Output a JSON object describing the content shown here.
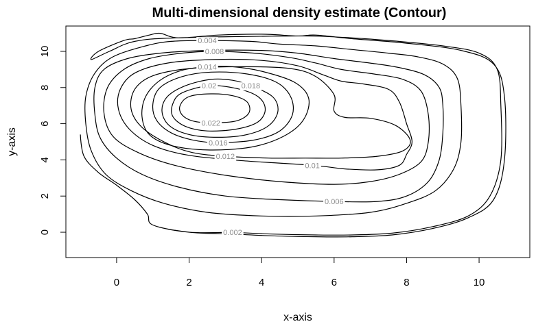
{
  "chart_data": {
    "type": "contour",
    "title": "Multi-dimensional density estimate (Contour)",
    "xlabel": "x-axis",
    "ylabel": "y-axis",
    "xlim": [
      -1.4,
      11.4
    ],
    "ylim": [
      -1.4,
      11.4
    ],
    "x_ticks": [
      0,
      2,
      4,
      6,
      8,
      10
    ],
    "y_ticks": [
      0,
      2,
      4,
      6,
      8,
      10
    ],
    "grid": false,
    "levels": [
      {
        "value": "0.002",
        "label_at": [
          3.2,
          0.0
        ],
        "points": [
          [
            3.2,
            0.0
          ],
          [
            4.3,
            -0.1
          ],
          [
            5.5,
            -0.15
          ],
          [
            6.5,
            -0.15
          ],
          [
            7.6,
            -0.05
          ],
          [
            8.7,
            0.3
          ],
          [
            9.7,
            0.9
          ],
          [
            10.3,
            2.0
          ],
          [
            10.6,
            4.0
          ],
          [
            10.6,
            7.0
          ],
          [
            10.5,
            9.0
          ],
          [
            10.0,
            9.9
          ],
          [
            9.0,
            10.3
          ],
          [
            7.5,
            10.6
          ],
          [
            6.0,
            10.8
          ],
          [
            5.0,
            10.85
          ],
          [
            1.7,
            10.75
          ],
          [
            0.5,
            10.55
          ],
          [
            -0.2,
            10.0
          ],
          [
            -0.7,
            9.55
          ],
          [
            -0.5,
            10.0
          ],
          [
            0.2,
            10.6
          ],
          [
            0.5,
            10.7
          ],
          [
            0.9,
            10.9
          ],
          [
            1.2,
            11.0
          ],
          [
            1.7,
            10.75
          ],
          [
            2.8,
            10.9
          ],
          [
            4.0,
            10.95
          ],
          [
            5.0,
            10.85
          ],
          [
            5.5,
            10.9
          ],
          [
            6.5,
            10.7
          ],
          [
            8.0,
            10.45
          ],
          [
            9.5,
            10.05
          ],
          [
            10.4,
            9.3
          ],
          [
            10.7,
            7.5
          ],
          [
            10.7,
            4.0
          ],
          [
            10.4,
            1.8
          ],
          [
            9.7,
            0.8
          ],
          [
            8.7,
            0.2
          ],
          [
            7.6,
            -0.15
          ],
          [
            6.5,
            -0.25
          ],
          [
            5.5,
            -0.25
          ],
          [
            4.3,
            -0.2
          ],
          [
            3.2,
            -0.1
          ],
          [
            2.0,
            0.0
          ],
          [
            1.0,
            0.4
          ],
          [
            0.85,
            1.0
          ],
          [
            0.5,
            1.8
          ],
          [
            0.0,
            2.6
          ],
          [
            -0.5,
            3.3
          ],
          [
            -0.9,
            4.2
          ],
          [
            -1.0,
            5.4
          ],
          [
            -0.9,
            4.2
          ],
          [
            -0.5,
            3.3
          ],
          [
            0.0,
            2.6
          ],
          [
            0.5,
            1.8
          ],
          [
            0.85,
            1.0
          ],
          [
            1.0,
            0.4
          ],
          [
            2.0,
            0.0
          ],
          [
            3.2,
            0.0
          ]
        ],
        "closed": false
      },
      {
        "value": "0.004",
        "label_at": [
          2.5,
          10.6
        ],
        "points": [
          [
            2.5,
            10.6
          ],
          [
            3.7,
            10.55
          ],
          [
            4.5,
            10.4
          ],
          [
            5.5,
            10.3
          ],
          [
            6.5,
            10.1
          ],
          [
            7.5,
            9.9
          ],
          [
            8.3,
            9.7
          ],
          [
            9.0,
            9.3
          ],
          [
            9.4,
            8.5
          ],
          [
            9.5,
            7.0
          ],
          [
            9.5,
            5.0
          ],
          [
            9.3,
            3.5
          ],
          [
            8.8,
            2.3
          ],
          [
            8.0,
            1.6
          ],
          [
            7.0,
            1.1
          ],
          [
            5.5,
            0.9
          ],
          [
            4.0,
            0.9
          ],
          [
            2.5,
            1.1
          ],
          [
            1.3,
            1.6
          ],
          [
            0.4,
            2.3
          ],
          [
            -0.3,
            3.2
          ],
          [
            -0.7,
            4.5
          ],
          [
            -0.85,
            6.0
          ],
          [
            -0.85,
            7.5
          ],
          [
            -0.6,
            8.8
          ],
          [
            -0.1,
            9.7
          ],
          [
            0.8,
            10.3
          ],
          [
            1.5,
            10.55
          ],
          [
            2.5,
            10.6
          ]
        ],
        "closed": true
      },
      {
        "value": "0.006",
        "label_at": [
          6.0,
          1.7
        ],
        "points": [
          [
            6.0,
            1.7
          ],
          [
            7.2,
            1.7
          ],
          [
            8.0,
            2.0
          ],
          [
            8.6,
            2.8
          ],
          [
            8.9,
            4.0
          ],
          [
            9.0,
            5.5
          ],
          [
            9.0,
            7.0
          ],
          [
            8.9,
            8.0
          ],
          [
            8.5,
            8.7
          ],
          [
            7.8,
            9.1
          ],
          [
            7.0,
            9.35
          ],
          [
            6.0,
            9.6
          ],
          [
            5.0,
            9.9
          ],
          [
            4.0,
            10.05
          ],
          [
            2.5,
            10.05
          ],
          [
            1.2,
            9.9
          ],
          [
            0.3,
            9.6
          ],
          [
            -0.35,
            9.0
          ],
          [
            -0.6,
            8.0
          ],
          [
            -0.6,
            6.5
          ],
          [
            -0.45,
            5.2
          ],
          [
            0.0,
            4.1
          ],
          [
            0.7,
            3.2
          ],
          [
            1.7,
            2.5
          ],
          [
            3.0,
            2.0
          ],
          [
            4.5,
            1.8
          ],
          [
            6.0,
            1.7
          ]
        ],
        "closed": true
      },
      {
        "value": "0.008",
        "label_at": [
          2.7,
          10.0
        ],
        "points": [
          [
            2.7,
            10.0
          ],
          [
            3.8,
            9.9
          ],
          [
            4.8,
            9.65
          ],
          [
            5.5,
            9.35
          ],
          [
            6.2,
            9.0
          ],
          [
            7.1,
            8.75
          ],
          [
            7.9,
            8.45
          ],
          [
            8.4,
            7.8
          ],
          [
            8.6,
            6.5
          ],
          [
            8.6,
            5.0
          ],
          [
            8.4,
            3.9
          ],
          [
            7.8,
            3.2
          ],
          [
            7.0,
            2.8
          ],
          [
            6.0,
            2.65
          ],
          [
            4.5,
            2.8
          ],
          [
            3.0,
            3.15
          ],
          [
            1.6,
            3.7
          ],
          [
            0.6,
            4.4
          ],
          [
            -0.1,
            5.3
          ],
          [
            -0.35,
            6.6
          ],
          [
            -0.25,
            8.0
          ],
          [
            0.2,
            9.0
          ],
          [
            0.9,
            9.6
          ],
          [
            1.8,
            9.9
          ],
          [
            2.7,
            10.0
          ]
        ],
        "closed": true
      },
      {
        "value": "0.01",
        "label_at": [
          5.4,
          3.7
        ],
        "points": [
          [
            5.4,
            3.7
          ],
          [
            6.3,
            3.5
          ],
          [
            7.2,
            3.45
          ],
          [
            7.8,
            3.7
          ],
          [
            8.0,
            4.3
          ],
          [
            8.15,
            5.0
          ],
          [
            8.0,
            6.0
          ],
          [
            7.8,
            7.2
          ],
          [
            7.5,
            7.9
          ],
          [
            6.8,
            8.2
          ],
          [
            6.2,
            8.35
          ],
          [
            5.7,
            8.7
          ],
          [
            5.0,
            9.2
          ],
          [
            4.0,
            9.5
          ],
          [
            2.7,
            9.55
          ],
          [
            1.4,
            9.35
          ],
          [
            0.5,
            8.8
          ],
          [
            0.1,
            7.9
          ],
          [
            0.05,
            6.8
          ],
          [
            0.35,
            5.7
          ],
          [
            1.0,
            4.8
          ],
          [
            2.0,
            4.25
          ],
          [
            3.5,
            3.95
          ],
          [
            5.4,
            3.7
          ]
        ],
        "closed": true
      },
      {
        "value": "0.012",
        "label_at": [
          3.0,
          4.2
        ],
        "points": [
          [
            3.0,
            4.2
          ],
          [
            4.2,
            4.1
          ],
          [
            5.2,
            4.1
          ],
          [
            6.2,
            4.1
          ],
          [
            7.2,
            4.2
          ],
          [
            7.9,
            4.5
          ],
          [
            8.1,
            5.1
          ],
          [
            7.7,
            5.9
          ],
          [
            7.0,
            6.3
          ],
          [
            6.3,
            6.35
          ],
          [
            6.0,
            6.7
          ],
          [
            6.0,
            7.6
          ],
          [
            5.5,
            8.6
          ],
          [
            4.8,
            9.05
          ],
          [
            3.5,
            9.15
          ],
          [
            2.0,
            9.05
          ],
          [
            1.0,
            8.65
          ],
          [
            0.5,
            7.9
          ],
          [
            0.4,
            6.8
          ],
          [
            0.7,
            5.8
          ],
          [
            1.4,
            4.9
          ],
          [
            2.1,
            4.4
          ],
          [
            3.0,
            4.2
          ]
        ],
        "closed": true
      },
      {
        "value": "0.014",
        "label_at": [
          2.5,
          9.15
        ],
        "points": [
          [
            2.5,
            9.15
          ],
          [
            3.2,
            9.15
          ],
          [
            4.0,
            8.9
          ],
          [
            4.9,
            8.3
          ],
          [
            5.3,
            7.4
          ],
          [
            5.15,
            6.2
          ],
          [
            4.6,
            5.3
          ],
          [
            3.7,
            4.7
          ],
          [
            2.5,
            4.55
          ],
          [
            1.5,
            4.8
          ],
          [
            0.9,
            5.4
          ],
          [
            0.7,
            6.4
          ],
          [
            0.8,
            7.5
          ],
          [
            1.2,
            8.4
          ],
          [
            1.8,
            8.95
          ],
          [
            2.5,
            9.15
          ]
        ],
        "closed": true
      },
      {
        "value": "0.016",
        "label_at": [
          2.8,
          4.95
        ],
        "points": [
          [
            2.8,
            4.95
          ],
          [
            3.8,
            5.1
          ],
          [
            4.5,
            5.6
          ],
          [
            4.85,
            6.5
          ],
          [
            4.8,
            7.5
          ],
          [
            4.4,
            8.3
          ],
          [
            3.6,
            8.75
          ],
          [
            2.6,
            8.85
          ],
          [
            1.8,
            8.6
          ],
          [
            1.2,
            8.0
          ],
          [
            1.0,
            7.1
          ],
          [
            1.1,
            6.2
          ],
          [
            1.5,
            5.5
          ],
          [
            2.1,
            5.1
          ],
          [
            2.8,
            4.95
          ]
        ],
        "closed": true
      },
      {
        "value": "0.018",
        "label_at": [
          3.7,
          8.1
        ],
        "points": [
          [
            3.7,
            8.1
          ],
          [
            4.3,
            7.5
          ],
          [
            4.45,
            6.7
          ],
          [
            4.2,
            5.9
          ],
          [
            3.6,
            5.4
          ],
          [
            2.8,
            5.25
          ],
          [
            2.0,
            5.4
          ],
          [
            1.45,
            5.9
          ],
          [
            1.25,
            6.7
          ],
          [
            1.4,
            7.5
          ],
          [
            1.9,
            8.1
          ],
          [
            2.6,
            8.45
          ],
          [
            3.2,
            8.4
          ],
          [
            3.7,
            8.1
          ]
        ],
        "closed": true
      },
      {
        "value": "0.02",
        "label_at": [
          2.55,
          8.1
        ],
        "points": [
          [
            2.55,
            8.1
          ],
          [
            3.3,
            7.95
          ],
          [
            3.9,
            7.5
          ],
          [
            4.1,
            6.8
          ],
          [
            3.9,
            6.1
          ],
          [
            3.3,
            5.7
          ],
          [
            2.5,
            5.6
          ],
          [
            1.9,
            5.85
          ],
          [
            1.55,
            6.4
          ],
          [
            1.55,
            7.1
          ],
          [
            1.8,
            7.7
          ],
          [
            2.55,
            8.1
          ]
        ],
        "closed": true
      },
      {
        "value": "0.022",
        "label_at": [
          2.6,
          6.05
        ],
        "points": [
          [
            2.6,
            6.05
          ],
          [
            3.3,
            6.15
          ],
          [
            3.65,
            6.6
          ],
          [
            3.6,
            7.2
          ],
          [
            3.2,
            7.55
          ],
          [
            2.6,
            7.65
          ],
          [
            2.0,
            7.5
          ],
          [
            1.75,
            7.0
          ],
          [
            1.8,
            6.5
          ],
          [
            2.1,
            6.15
          ],
          [
            2.6,
            6.05
          ]
        ],
        "closed": true
      }
    ]
  }
}
